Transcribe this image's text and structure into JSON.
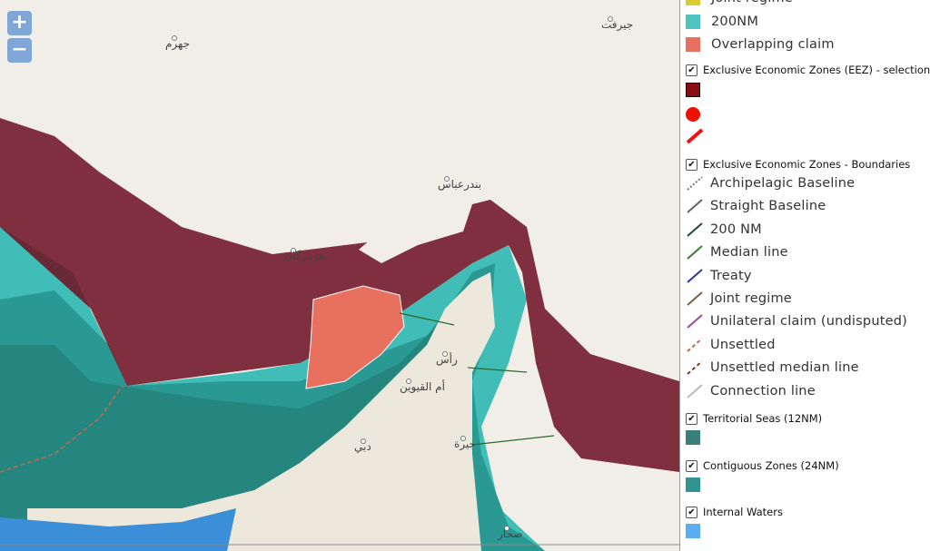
{
  "zoom": {
    "zoom_in": "+",
    "zoom_out": "−"
  },
  "map_labels": [
    "جهرم",
    "جيرفت",
    "بندرعباس",
    "هرمزگان",
    "رأس",
    "أم القيوين",
    "دبي",
    "جيرة",
    "صحار"
  ],
  "legend": {
    "top_items": [
      "Joint regime",
      "200NM",
      "Overlapping claim"
    ],
    "sections": [
      {
        "title": "Exclusive Economic Zones (EEZ) - selection"
      },
      {
        "title": "Exclusive Economic Zones - Boundaries",
        "items": [
          "Archipelagic Baseline",
          "Straight Baseline",
          "200 NM",
          "Median line",
          "Treaty",
          "Joint regime",
          "Unilateral claim (undisputed)",
          "Unsettled",
          "Unsettled median line",
          "Connection line"
        ]
      },
      {
        "title": "Territorial Seas (12NM)"
      },
      {
        "title": "Contiguous Zones (24NM)"
      },
      {
        "title": "Internal Waters"
      }
    ]
  }
}
